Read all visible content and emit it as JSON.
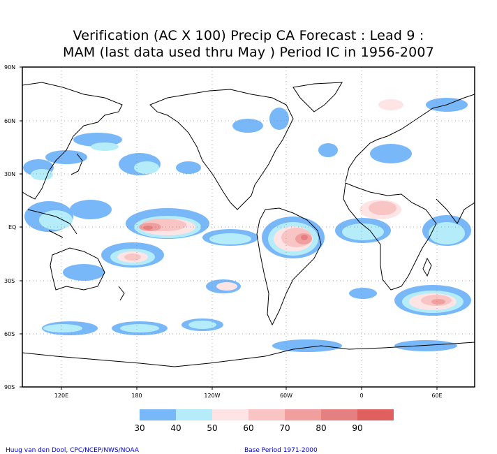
{
  "title": {
    "line1": "Verification (AC X 100) Precip CA Forecast : Lead 9 :",
    "line2": "MAM (last data used thru May ) Period IC in 1956-2007"
  },
  "map": {
    "lat_labels": [
      "90N",
      "60N",
      "30N",
      "EQ",
      "30S",
      "60S",
      "90S"
    ],
    "lon_labels": [
      "120E",
      "180",
      "120W",
      "60W",
      "0",
      "60E"
    ],
    "ocean_color": "#ffffff",
    "coast_color": "#000000",
    "grid": "dotted"
  },
  "colorbar": {
    "ticks": [
      "30",
      "40",
      "50",
      "60",
      "70",
      "80",
      "90"
    ],
    "colors": [
      "#78b8f8",
      "#b4ecfa",
      "#fee4e4",
      "#f8c4c4",
      "#f09e9e",
      "#e48080",
      "#e06060"
    ]
  },
  "credits": {
    "left": "Huug van den Dool, CPC/NCEP/NWS/NOAA",
    "right": "Base Period 1971-2000"
  }
}
